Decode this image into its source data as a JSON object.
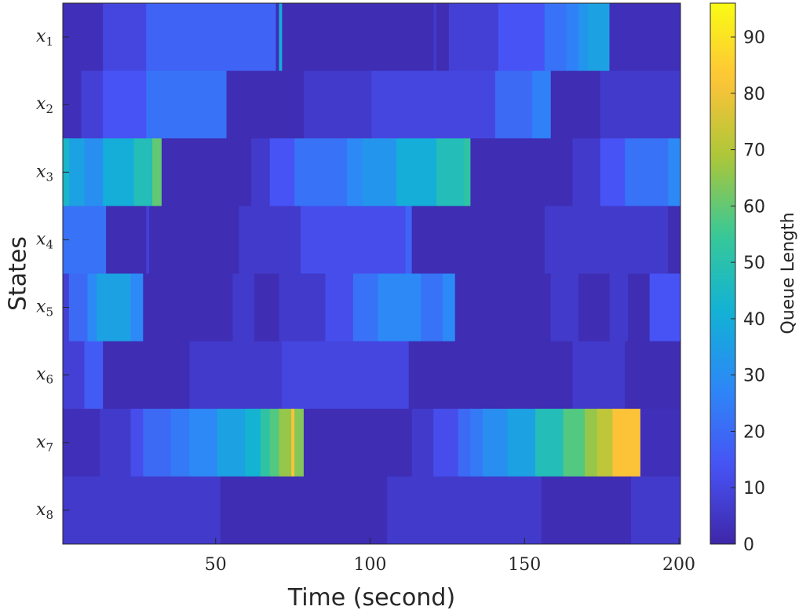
{
  "chart_data": {
    "type": "heatmap",
    "title": "",
    "xlabel": "Time (second)",
    "ylabel": "States",
    "xlim": [
      1,
      200
    ],
    "x_ticks": [
      50,
      100,
      150,
      200
    ],
    "y_categories": [
      {
        "base": "x",
        "sub": "1"
      },
      {
        "base": "x",
        "sub": "2"
      },
      {
        "base": "x",
        "sub": "3"
      },
      {
        "base": "x",
        "sub": "4"
      },
      {
        "base": "x",
        "sub": "5"
      },
      {
        "base": "x",
        "sub": "6"
      },
      {
        "base": "x",
        "sub": "7"
      },
      {
        "base": "x",
        "sub": "8"
      }
    ],
    "colorbar": {
      "label": "Queue Length",
      "min": 0,
      "max": 96,
      "ticks": [
        0,
        10,
        20,
        30,
        40,
        50,
        60,
        70,
        80,
        90
      ]
    },
    "colormap": "parula",
    "rows": [
      {
        "state": "x1",
        "segments": [
          [
            1,
            14,
            3
          ],
          [
            14,
            28,
            10
          ],
          [
            28,
            70,
            18
          ],
          [
            70,
            71,
            2
          ],
          [
            71,
            72,
            40
          ],
          [
            72,
            121,
            2
          ],
          [
            121,
            122,
            6
          ],
          [
            122,
            126,
            2
          ],
          [
            126,
            142,
            8
          ],
          [
            142,
            157,
            14
          ],
          [
            157,
            164,
            22
          ],
          [
            164,
            168,
            26
          ],
          [
            168,
            171,
            32
          ],
          [
            171,
            178,
            36
          ],
          [
            178,
            201,
            3
          ]
        ]
      },
      {
        "state": "x2",
        "segments": [
          [
            1,
            7,
            3
          ],
          [
            7,
            14,
            8
          ],
          [
            14,
            28,
            14
          ],
          [
            28,
            54,
            22
          ],
          [
            54,
            79,
            2
          ],
          [
            79,
            101,
            6
          ],
          [
            101,
            141,
            10
          ],
          [
            141,
            153,
            20
          ],
          [
            153,
            159,
            26
          ],
          [
            159,
            175,
            2
          ],
          [
            175,
            201,
            6
          ]
        ]
      },
      {
        "state": "x3",
        "segments": [
          [
            1,
            3,
            44
          ],
          [
            3,
            8,
            36
          ],
          [
            8,
            14,
            30
          ],
          [
            14,
            24,
            40
          ],
          [
            24,
            30,
            48
          ],
          [
            30,
            33,
            60
          ],
          [
            33,
            62,
            2
          ],
          [
            62,
            68,
            6
          ],
          [
            68,
            76,
            14
          ],
          [
            76,
            93,
            22
          ],
          [
            93,
            98,
            28
          ],
          [
            98,
            109,
            32
          ],
          [
            109,
            122,
            40
          ],
          [
            122,
            131,
            48
          ],
          [
            131,
            133,
            52
          ],
          [
            133,
            166,
            2
          ],
          [
            166,
            175,
            6
          ],
          [
            175,
            183,
            14
          ],
          [
            183,
            197,
            22
          ],
          [
            197,
            201,
            28
          ]
        ]
      },
      {
        "state": "x4",
        "segments": [
          [
            1,
            15,
            22
          ],
          [
            15,
            28,
            2
          ],
          [
            28,
            29,
            8
          ],
          [
            29,
            58,
            2
          ],
          [
            58,
            78,
            6
          ],
          [
            78,
            112,
            12
          ],
          [
            112,
            114,
            18
          ],
          [
            114,
            157,
            2
          ],
          [
            157,
            197,
            6
          ],
          [
            197,
            201,
            2
          ]
        ]
      },
      {
        "state": "x5",
        "segments": [
          [
            1,
            3,
            8
          ],
          [
            3,
            9,
            20
          ],
          [
            9,
            12,
            28
          ],
          [
            12,
            23,
            36
          ],
          [
            23,
            27,
            28
          ],
          [
            27,
            56,
            2
          ],
          [
            56,
            63,
            6
          ],
          [
            63,
            71,
            2
          ],
          [
            71,
            86,
            6
          ],
          [
            86,
            95,
            12
          ],
          [
            95,
            103,
            22
          ],
          [
            103,
            117,
            28
          ],
          [
            117,
            124,
            22
          ],
          [
            124,
            128,
            28
          ],
          [
            128,
            159,
            2
          ],
          [
            159,
            168,
            6
          ],
          [
            168,
            178,
            2
          ],
          [
            178,
            184,
            6
          ],
          [
            184,
            191,
            2
          ],
          [
            191,
            201,
            14
          ]
        ]
      },
      {
        "state": "x6",
        "segments": [
          [
            1,
            8,
            8
          ],
          [
            8,
            14,
            16
          ],
          [
            14,
            42,
            2
          ],
          [
            42,
            72,
            6
          ],
          [
            72,
            113,
            10
          ],
          [
            113,
            166,
            2
          ],
          [
            166,
            183,
            6
          ],
          [
            183,
            201,
            2
          ]
        ]
      },
      {
        "state": "x7",
        "segments": [
          [
            1,
            13,
            3
          ],
          [
            13,
            23,
            6
          ],
          [
            23,
            27,
            12
          ],
          [
            27,
            36,
            20
          ],
          [
            36,
            42,
            24
          ],
          [
            42,
            51,
            28
          ],
          [
            51,
            60,
            36
          ],
          [
            60,
            65,
            42
          ],
          [
            65,
            68,
            52
          ],
          [
            68,
            71,
            58
          ],
          [
            71,
            75,
            66
          ],
          [
            75,
            76,
            82
          ],
          [
            76,
            79,
            64
          ],
          [
            79,
            114,
            2
          ],
          [
            114,
            121,
            6
          ],
          [
            121,
            129,
            12
          ],
          [
            129,
            133,
            20
          ],
          [
            133,
            137,
            24
          ],
          [
            137,
            145,
            30
          ],
          [
            145,
            154,
            36
          ],
          [
            154,
            163,
            48
          ],
          [
            163,
            170,
            58
          ],
          [
            170,
            174,
            66
          ],
          [
            174,
            179,
            72
          ],
          [
            179,
            188,
            82
          ],
          [
            188,
            201,
            3
          ]
        ]
      },
      {
        "state": "x8",
        "segments": [
          [
            1,
            52,
            6
          ],
          [
            52,
            106,
            2
          ],
          [
            106,
            156,
            6
          ],
          [
            156,
            185,
            2
          ],
          [
            185,
            201,
            6
          ]
        ]
      }
    ]
  }
}
